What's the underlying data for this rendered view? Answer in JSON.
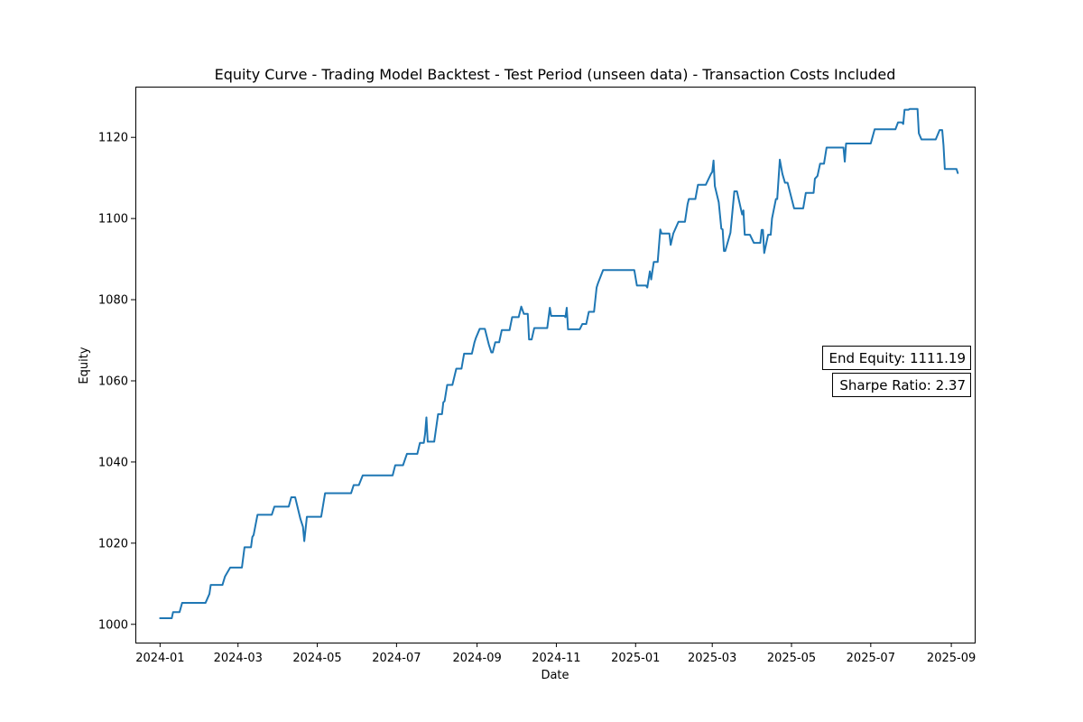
{
  "chart_data": {
    "type": "line",
    "title": "Equity Curve - Trading Model Backtest - Test Period (unseen data) - Transaction Costs Included",
    "xlabel": "Date",
    "ylabel": "Equity",
    "xlim": [
      "2023-12-13",
      "2025-09-19"
    ],
    "ylim": [
      995.5,
      1132.5
    ],
    "x_ticks": [
      {
        "date": "2024-01-01",
        "label": "2024-01"
      },
      {
        "date": "2024-03-01",
        "label": "2024-03"
      },
      {
        "date": "2024-05-01",
        "label": "2024-05"
      },
      {
        "date": "2024-07-01",
        "label": "2024-07"
      },
      {
        "date": "2024-09-01",
        "label": "2024-09"
      },
      {
        "date": "2024-11-01",
        "label": "2024-11"
      },
      {
        "date": "2025-01-01",
        "label": "2025-01"
      },
      {
        "date": "2025-03-01",
        "label": "2025-03"
      },
      {
        "date": "2025-05-01",
        "label": "2025-05"
      },
      {
        "date": "2025-07-01",
        "label": "2025-07"
      },
      {
        "date": "2025-09-01",
        "label": "2025-09"
      }
    ],
    "y_ticks": [
      1000,
      1020,
      1040,
      1060,
      1080,
      1100,
      1120
    ],
    "grid": false,
    "series": [
      {
        "name": "",
        "color": "#1f77b4",
        "points": [
          [
            "2024-01-01",
            1001.5
          ],
          [
            "2024-01-10",
            1001.5
          ],
          [
            "2024-01-11",
            1003
          ],
          [
            "2024-01-16",
            1003
          ],
          [
            "2024-01-18",
            1005.3
          ],
          [
            "2024-02-05",
            1005.3
          ],
          [
            "2024-02-08",
            1007.5
          ],
          [
            "2024-02-09",
            1009.7
          ],
          [
            "2024-02-18",
            1009.7
          ],
          [
            "2024-02-20",
            1011.8
          ],
          [
            "2024-02-24",
            1014
          ],
          [
            "2024-03-04",
            1014
          ],
          [
            "2024-03-06",
            1019
          ],
          [
            "2024-03-11",
            1019
          ],
          [
            "2024-03-12",
            1021.5
          ],
          [
            "2024-03-13",
            1022
          ],
          [
            "2024-03-16",
            1027
          ],
          [
            "2024-03-27",
            1027
          ],
          [
            "2024-03-29",
            1029
          ],
          [
            "2024-04-09",
            1029
          ],
          [
            "2024-04-11",
            1031.3
          ],
          [
            "2024-04-14",
            1031.3
          ],
          [
            "2024-04-18",
            1026
          ],
          [
            "2024-04-20",
            1024
          ],
          [
            "2024-04-21",
            1020.5
          ],
          [
            "2024-04-23",
            1026.5
          ],
          [
            "2024-04-26",
            1026.5
          ],
          [
            "2024-05-04",
            1026.5
          ],
          [
            "2024-05-07",
            1032.3
          ],
          [
            "2024-05-27",
            1032.3
          ],
          [
            "2024-05-29",
            1034.3
          ],
          [
            "2024-06-02",
            1034.3
          ],
          [
            "2024-06-05",
            1036.7
          ],
          [
            "2024-06-28",
            1036.7
          ],
          [
            "2024-06-30",
            1039.2
          ],
          [
            "2024-07-06",
            1039.2
          ],
          [
            "2024-07-09",
            1042
          ],
          [
            "2024-07-17",
            1042
          ],
          [
            "2024-07-19",
            1044.7
          ],
          [
            "2024-07-22",
            1044.7
          ],
          [
            "2024-07-23",
            1047
          ],
          [
            "2024-07-24",
            1051
          ],
          [
            "2024-07-25",
            1045
          ],
          [
            "2024-07-30",
            1045
          ],
          [
            "2024-08-02",
            1051.8
          ],
          [
            "2024-08-05",
            1051.8
          ],
          [
            "2024-08-06",
            1054.7
          ],
          [
            "2024-08-07",
            1055
          ],
          [
            "2024-08-09",
            1059
          ],
          [
            "2024-08-13",
            1059
          ],
          [
            "2024-08-16",
            1063
          ],
          [
            "2024-08-20",
            1063
          ],
          [
            "2024-08-22",
            1066.7
          ],
          [
            "2024-08-28",
            1066.7
          ],
          [
            "2024-08-30",
            1069.5
          ],
          [
            "2024-08-31",
            1070.5
          ],
          [
            "2024-09-03",
            1072.8
          ],
          [
            "2024-09-07",
            1072.8
          ],
          [
            "2024-09-10",
            1069
          ],
          [
            "2024-09-12",
            1067
          ],
          [
            "2024-09-13",
            1067
          ],
          [
            "2024-09-15",
            1069.5
          ],
          [
            "2024-09-18",
            1069.5
          ],
          [
            "2024-09-20",
            1072.5
          ],
          [
            "2024-09-26",
            1072.5
          ],
          [
            "2024-09-28",
            1075.7
          ],
          [
            "2024-10-03",
            1075.7
          ],
          [
            "2024-10-05",
            1078.3
          ],
          [
            "2024-10-07",
            1076.5
          ],
          [
            "2024-10-10",
            1076.5
          ],
          [
            "2024-10-11",
            1070.2
          ],
          [
            "2024-10-13",
            1070.2
          ],
          [
            "2024-10-15",
            1073
          ],
          [
            "2024-10-25",
            1073
          ],
          [
            "2024-10-27",
            1078
          ],
          [
            "2024-10-28",
            1076
          ],
          [
            "2024-11-07",
            1076
          ],
          [
            "2024-11-08",
            1075.7
          ],
          [
            "2024-11-09",
            1078
          ],
          [
            "2024-11-10",
            1072.7
          ],
          [
            "2024-11-19",
            1072.7
          ],
          [
            "2024-11-21",
            1074
          ],
          [
            "2024-11-24",
            1074
          ],
          [
            "2024-11-26",
            1077
          ],
          [
            "2024-11-30",
            1077
          ],
          [
            "2024-12-02",
            1083
          ],
          [
            "2024-12-03",
            1084
          ],
          [
            "2024-12-07",
            1087.3
          ],
          [
            "2024-12-31",
            1087.3
          ],
          [
            "2025-01-02",
            1083.5
          ],
          [
            "2025-01-09",
            1083.5
          ],
          [
            "2025-01-10",
            1083
          ],
          [
            "2025-01-12",
            1087
          ],
          [
            "2025-01-13",
            1085
          ],
          [
            "2025-01-15",
            1089.3
          ],
          [
            "2025-01-18",
            1089.3
          ],
          [
            "2025-01-20",
            1097.3
          ],
          [
            "2025-01-21",
            1096.3
          ],
          [
            "2025-01-27",
            1096.3
          ],
          [
            "2025-01-28",
            1093.5
          ],
          [
            "2025-01-30",
            1096.3
          ],
          [
            "2025-02-03",
            1099.2
          ],
          [
            "2025-02-08",
            1099.2
          ],
          [
            "2025-02-10",
            1103.5
          ],
          [
            "2025-02-11",
            1104.8
          ],
          [
            "2025-02-16",
            1104.8
          ],
          [
            "2025-02-18",
            1108.3
          ],
          [
            "2025-02-24",
            1108.3
          ],
          [
            "2025-02-28",
            1111
          ],
          [
            "2025-03-01",
            1111.5
          ],
          [
            "2025-03-02",
            1114.3
          ],
          [
            "2025-03-03",
            1108
          ],
          [
            "2025-03-06",
            1104
          ],
          [
            "2025-03-08",
            1097.5
          ],
          [
            "2025-03-09",
            1097.3
          ],
          [
            "2025-03-10",
            1092
          ],
          [
            "2025-03-11",
            1092
          ],
          [
            "2025-03-15",
            1096.5
          ],
          [
            "2025-03-18",
            1106.7
          ],
          [
            "2025-03-20",
            1106.7
          ],
          [
            "2025-03-24",
            1101
          ],
          [
            "2025-03-25",
            1102
          ],
          [
            "2025-03-26",
            1096
          ],
          [
            "2025-03-30",
            1096
          ],
          [
            "2025-04-02",
            1094
          ],
          [
            "2025-04-07",
            1094
          ],
          [
            "2025-04-08",
            1097.2
          ],
          [
            "2025-04-09",
            1097.2
          ],
          [
            "2025-04-10",
            1091.5
          ],
          [
            "2025-04-13",
            1096
          ],
          [
            "2025-04-15",
            1096
          ],
          [
            "2025-04-16",
            1100
          ],
          [
            "2025-04-19",
            1104.8
          ],
          [
            "2025-04-20",
            1104.8
          ],
          [
            "2025-04-22",
            1114.5
          ],
          [
            "2025-04-24",
            1111
          ],
          [
            "2025-04-26",
            1108.8
          ],
          [
            "2025-04-28",
            1108.8
          ],
          [
            "2025-05-01",
            1105
          ],
          [
            "2025-05-03",
            1102.5
          ],
          [
            "2025-05-10",
            1102.5
          ],
          [
            "2025-05-12",
            1106.3
          ],
          [
            "2025-05-18",
            1106.3
          ],
          [
            "2025-05-19",
            1109.8
          ],
          [
            "2025-05-21",
            1110.5
          ],
          [
            "2025-05-23",
            1113.5
          ],
          [
            "2025-05-26",
            1113.5
          ],
          [
            "2025-05-28",
            1117.5
          ],
          [
            "2025-06-10",
            1117.5
          ],
          [
            "2025-06-11",
            1114
          ],
          [
            "2025-06-12",
            1118.5
          ],
          [
            "2025-07-01",
            1118.5
          ],
          [
            "2025-07-04",
            1122
          ],
          [
            "2025-07-20",
            1122
          ],
          [
            "2025-07-22",
            1123.7
          ],
          [
            "2025-07-25",
            1123.7
          ],
          [
            "2025-07-26",
            1123.3
          ],
          [
            "2025-07-27",
            1126.8
          ],
          [
            "2025-07-30",
            1126.8
          ],
          [
            "2025-07-31",
            1127
          ],
          [
            "2025-08-06",
            1127
          ],
          [
            "2025-08-07",
            1121
          ],
          [
            "2025-08-09",
            1119.5
          ],
          [
            "2025-08-20",
            1119.5
          ],
          [
            "2025-08-23",
            1121.8
          ],
          [
            "2025-08-25",
            1121.8
          ],
          [
            "2025-08-26",
            1118
          ],
          [
            "2025-08-27",
            1112.2
          ],
          [
            "2025-09-05",
            1112.2
          ],
          [
            "2025-09-06",
            1111.2
          ]
        ]
      }
    ],
    "annotations": [
      {
        "text": "End Equity: 1111.19"
      },
      {
        "text": "Sharpe Ratio: 2.37"
      }
    ]
  }
}
